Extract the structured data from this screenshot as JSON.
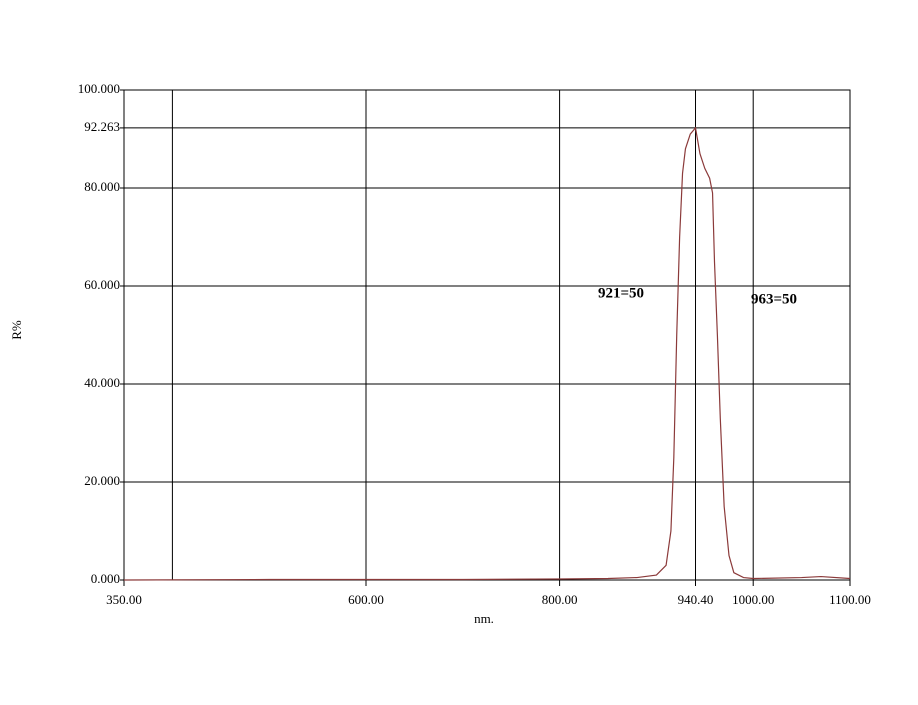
{
  "chart_data": {
    "type": "line",
    "x_label": "nm.",
    "y_label": "R%",
    "xlim": [
      350,
      1100
    ],
    "ylim": [
      0,
      100
    ],
    "xticks": [
      {
        "value": 350,
        "label": "350.00"
      },
      {
        "value": 600,
        "label": "600.00"
      },
      {
        "value": 800,
        "label": "800.00"
      },
      {
        "value": 940.4,
        "label": "940.40"
      },
      {
        "value": 1000,
        "label": "1000.00"
      },
      {
        "value": 1100,
        "label": "1100.00"
      }
    ],
    "xgrid": [
      400,
      600,
      800,
      940.4,
      1000
    ],
    "yticks": [
      {
        "value": 0,
        "label": "0.000"
      },
      {
        "value": 20,
        "label": "20.000"
      },
      {
        "value": 40,
        "label": "40.000"
      },
      {
        "value": 60,
        "label": "60.000"
      },
      {
        "value": 80,
        "label": "80.000"
      },
      {
        "value": 92.263,
        "label": "92.263"
      },
      {
        "value": 100,
        "label": "100.000"
      }
    ],
    "grid": true,
    "annotations": [
      "921=50",
      "963=50"
    ],
    "series": [
      {
        "name": "R%",
        "color": "#8b3a3a",
        "x": [
          350,
          500,
          700,
          800,
          850,
          880,
          900,
          910,
          915,
          918,
          921,
          924,
          927,
          930,
          935,
          940.4,
          945,
          950,
          955,
          958,
          960,
          963,
          966,
          970,
          975,
          980,
          990,
          1000,
          1050,
          1070,
          1100
        ],
        "values": [
          0,
          0.1,
          0.1,
          0.2,
          0.3,
          0.5,
          1,
          3,
          10,
          25,
          50,
          70,
          83,
          88,
          91,
          92.263,
          87,
          84,
          82,
          79,
          65,
          50,
          33,
          15,
          5,
          1.5,
          0.5,
          0.3,
          0.5,
          0.7,
          0.3
        ]
      }
    ]
  }
}
